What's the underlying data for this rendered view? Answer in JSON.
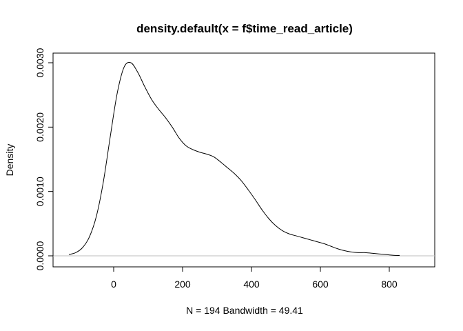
{
  "chart_data": {
    "type": "line",
    "title": "density.default(x = f$time_read_article)",
    "xlabel": "N = 194   Bandwidth = 49.41",
    "ylabel": "Density",
    "xlim": [
      -150,
      850
    ],
    "ylim": [
      -0.0002,
      0.0031
    ],
    "x_ticks": [
      0,
      200,
      400,
      600,
      800
    ],
    "x_tick_labels": [
      "0",
      "200",
      "400",
      "600",
      "800"
    ],
    "y_ticks": [
      0,
      0.001,
      0.002,
      0.003
    ],
    "y_tick_labels": [
      "0.0000",
      "0.0010",
      "0.0020",
      "0.0030"
    ],
    "baseline": 0,
    "series": [
      {
        "name": "density",
        "x": [
          -130,
          -110,
          -90,
          -70,
          -50,
          -30,
          -10,
          10,
          30,
          50,
          70,
          90,
          110,
          130,
          150,
          170,
          190,
          210,
          230,
          250,
          270,
          290,
          310,
          330,
          350,
          370,
          390,
          410,
          430,
          450,
          470,
          490,
          510,
          530,
          550,
          570,
          590,
          610,
          630,
          650,
          670,
          690,
          710,
          730,
          750,
          770,
          790,
          810,
          830
        ],
        "y": [
          2e-05,
          5e-05,
          0.00013,
          0.0003,
          0.00062,
          0.00115,
          0.00185,
          0.00252,
          0.00293,
          0.003,
          0.00285,
          0.00263,
          0.00243,
          0.00228,
          0.00215,
          0.002,
          0.00183,
          0.00171,
          0.00165,
          0.00161,
          0.00158,
          0.00154,
          0.00146,
          0.00137,
          0.00128,
          0.00117,
          0.00103,
          0.00088,
          0.00072,
          0.00058,
          0.00047,
          0.00039,
          0.00034,
          0.00031,
          0.00028,
          0.00025,
          0.00022,
          0.00019,
          0.00015,
          0.00011,
          8e-05,
          6e-05,
          5e-05,
          5e-05,
          4e-05,
          3e-05,
          2e-05,
          1e-05,
          5e-06
        ]
      }
    ]
  }
}
